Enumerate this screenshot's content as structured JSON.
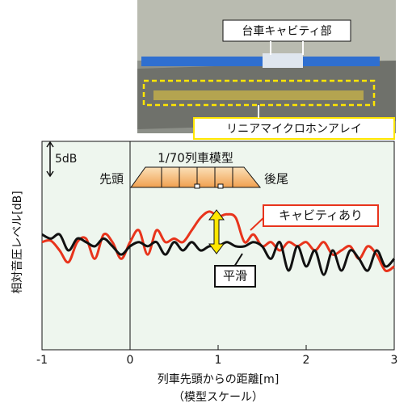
{
  "photo": {
    "labels": [
      "台車キャビティ部",
      "リニアマイクロホンアレイ"
    ]
  },
  "chart_data": {
    "type": "line",
    "model_label": "1/70列車模型",
    "head_label": "先頭",
    "tail_label": "後尾",
    "x_label": "列車先頭からの距離[m]",
    "x_label_sub": "（模型スケール）",
    "y_label": "相対音圧レベル[dB]",
    "scale_bar": {
      "value": 5,
      "label": "5dB"
    },
    "xlim": [
      -1,
      3
    ],
    "xticks": [
      -1,
      0,
      1,
      2,
      3
    ],
    "ylim": [
      0,
      30
    ],
    "x": [
      -1,
      -0.9,
      -0.8,
      -0.7,
      -0.6,
      -0.5,
      -0.4,
      -0.3,
      -0.2,
      -0.1,
      0,
      0.1,
      0.2,
      0.3,
      0.4,
      0.5,
      0.6,
      0.7,
      0.8,
      0.9,
      1,
      1.1,
      1.2,
      1.3,
      1.4,
      1.5,
      1.6,
      1.7,
      1.8,
      1.9,
      2,
      2.1,
      2.2,
      2.3,
      2.4,
      2.5,
      2.6,
      2.7,
      2.8,
      2.9,
      3
    ],
    "series": [
      {
        "name": "キャビティあり",
        "color": "#e8341c",
        "values": [
          15.5,
          15.7,
          14.3,
          12.6,
          15.5,
          16.0,
          13.1,
          16.6,
          15.5,
          13.1,
          15.5,
          17.2,
          13.7,
          17.2,
          15.5,
          16.0,
          15.5,
          17.2,
          19.0,
          19.9,
          19.2,
          19.5,
          19.0,
          15.5,
          16.6,
          14.9,
          15.5,
          14.3,
          15.5,
          14.9,
          15.5,
          14.3,
          15.5,
          13.7,
          14.3,
          14.9,
          13.1,
          14.9,
          13.7,
          11.4,
          12.0
        ]
      },
      {
        "name": "平滑",
        "color": "#111111",
        "values": [
          16.6,
          16.0,
          16.6,
          14.3,
          16.0,
          15.5,
          14.9,
          16.0,
          14.9,
          13.7,
          14.9,
          15.5,
          14.9,
          15.5,
          13.7,
          15.5,
          14.3,
          15.5,
          14.3,
          14.9,
          14.9,
          15.5,
          14.9,
          14.9,
          15.5,
          14.9,
          13.1,
          15.5,
          11.4,
          14.9,
          12.0,
          14.3,
          10.8,
          14.3,
          11.4,
          14.3,
          13.1,
          11.4,
          14.3,
          12.0,
          13.1
        ]
      }
    ]
  }
}
